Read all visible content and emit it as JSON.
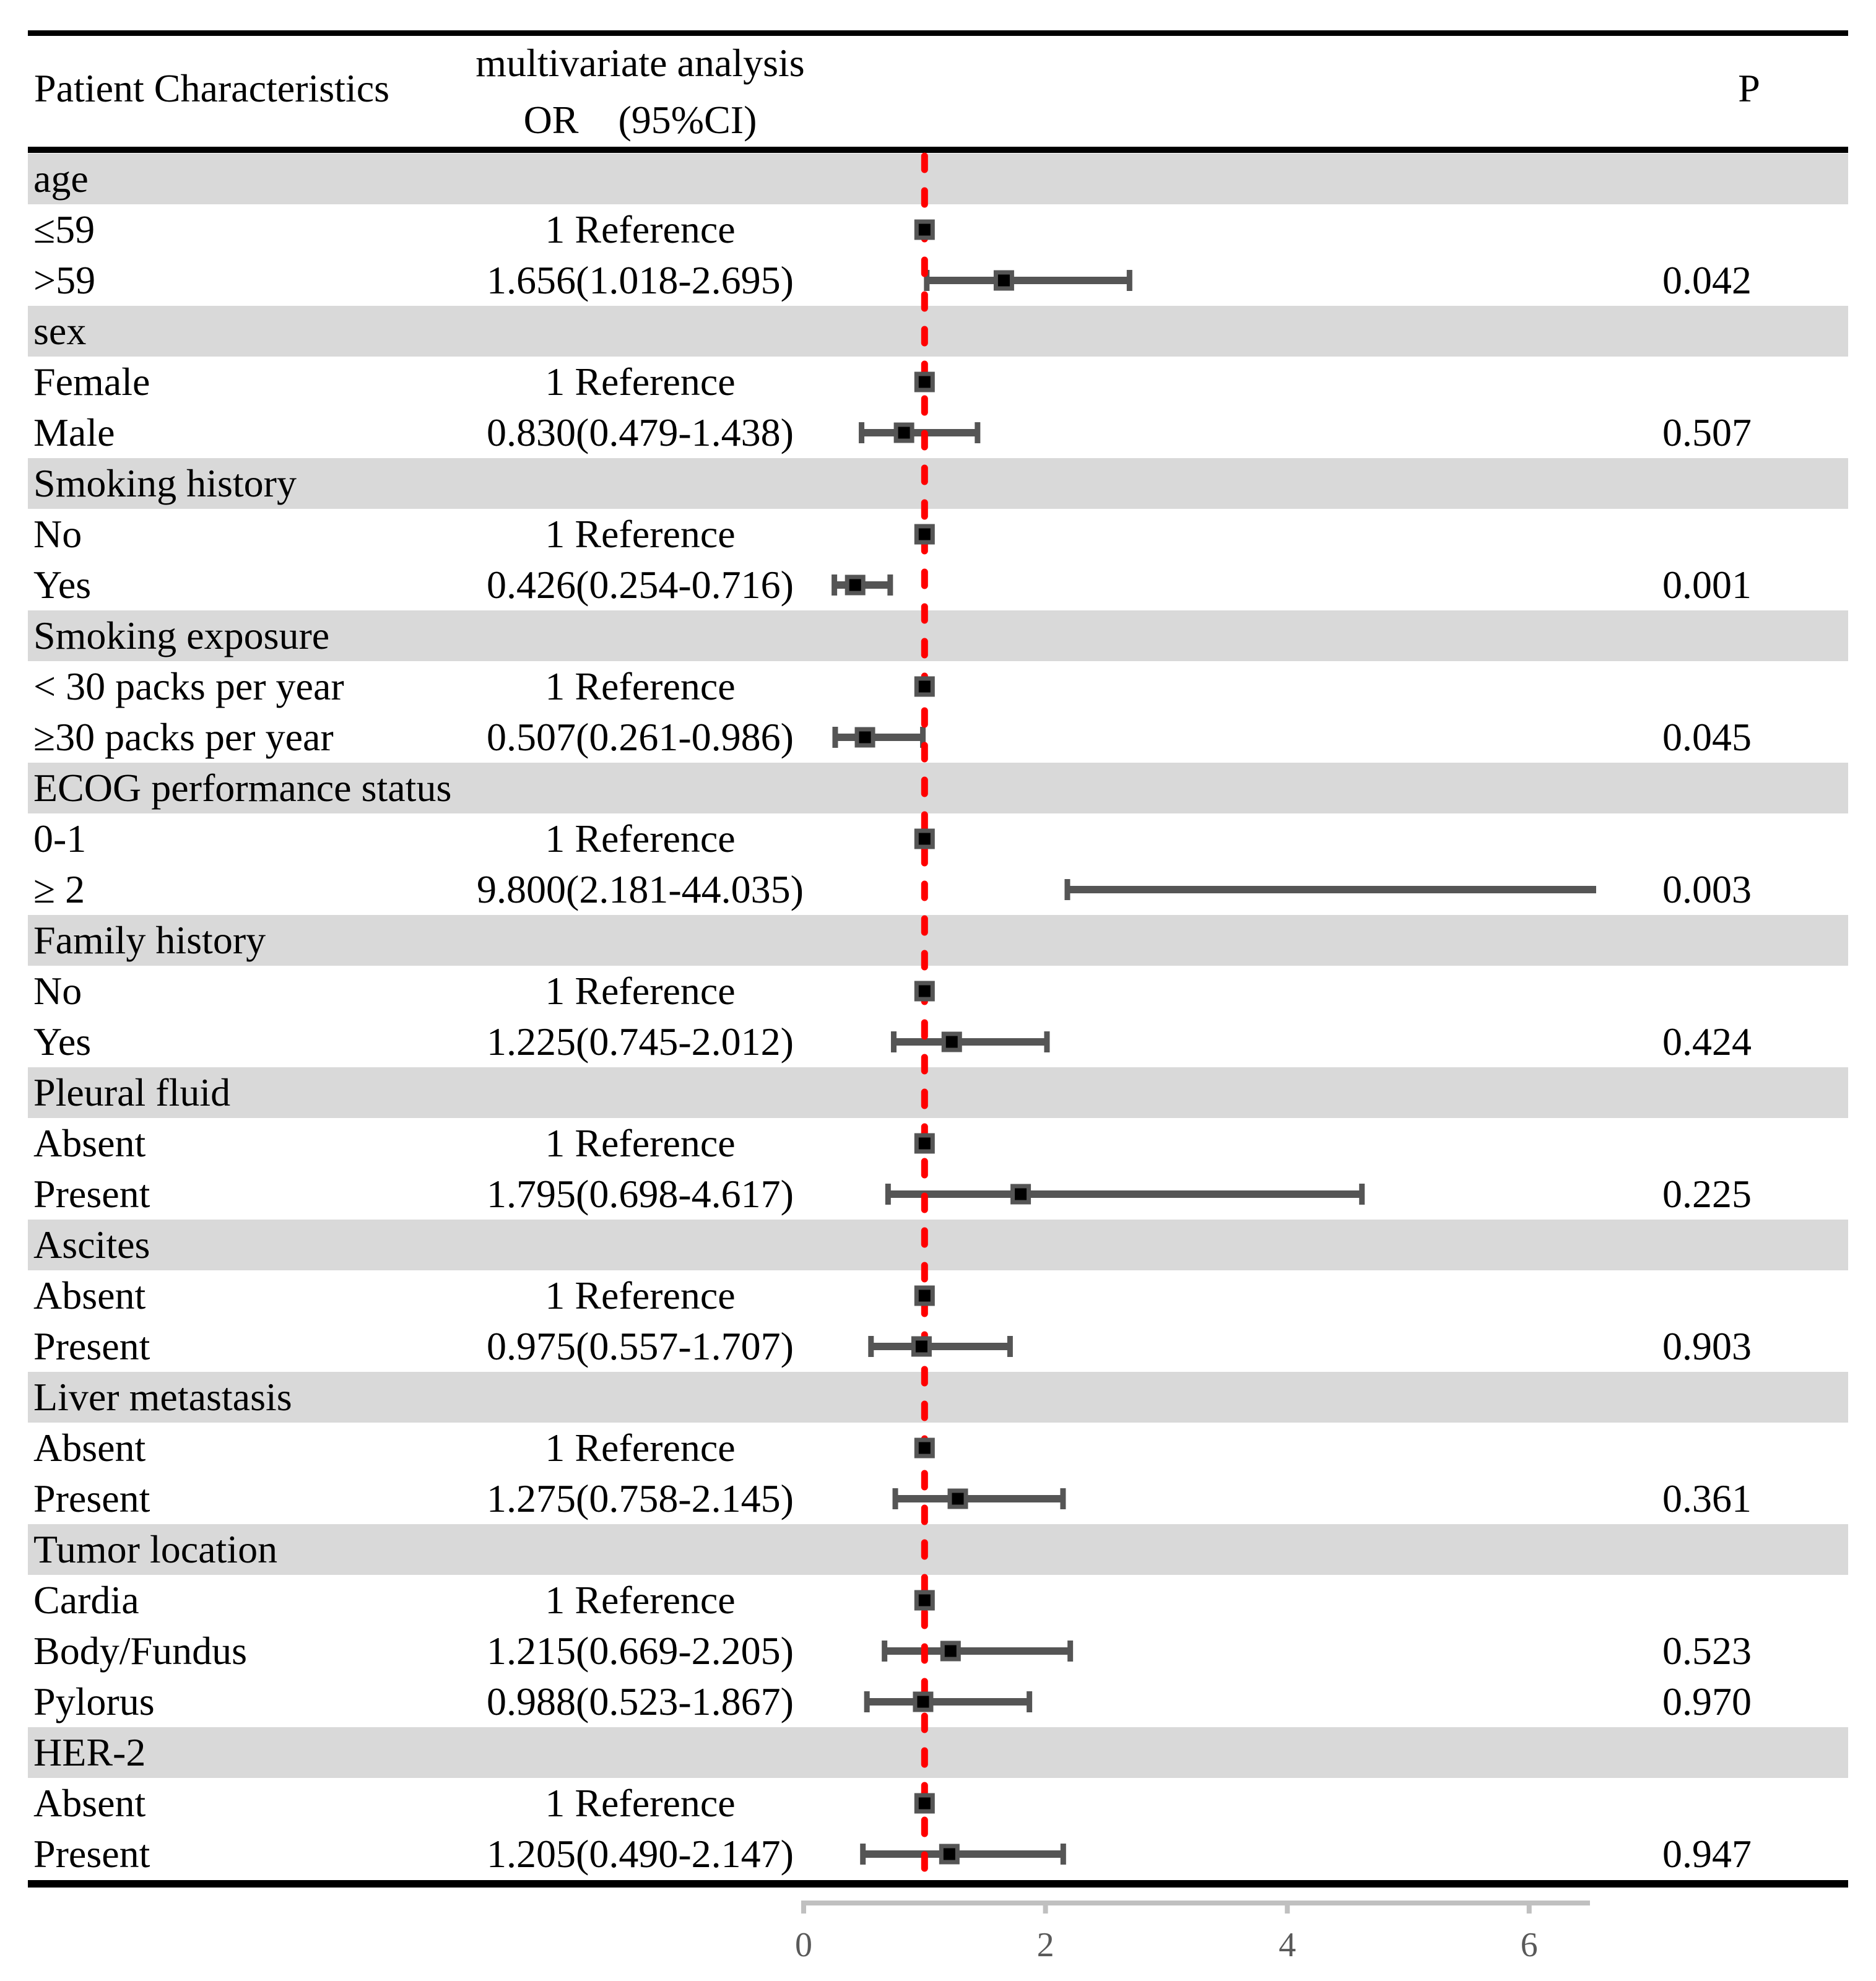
{
  "header": {
    "col_characteristics": "Patient Characteristics",
    "col_analysis_line1": "multivariate analysis",
    "col_analysis_line2": "OR (95%CI)",
    "col_p": "P"
  },
  "axis": {
    "tick_labels": [
      "0",
      "2",
      "4",
      "6"
    ],
    "tick_values": [
      0,
      2,
      4,
      6
    ],
    "reference_value": 1
  },
  "colors": {
    "band": "#d9d9d9",
    "red_line": "#ff0000",
    "marker_fill": "#000000",
    "marker_border": "#555555",
    "bar": "#555555",
    "axis_line": "#c0c0c0",
    "axis_label": "#595959",
    "text": "#000000"
  },
  "rows": [
    {
      "kind": "group",
      "label": "age"
    },
    {
      "kind": "item",
      "label": "≤59",
      "or_text": "1 Reference",
      "reference": true,
      "est": 1
    },
    {
      "kind": "item",
      "label": ">59",
      "or_text": "1.656(1.018-2.695)",
      "est": 1.656,
      "lo": 1.018,
      "hi": 2.695,
      "p": "0.042"
    },
    {
      "kind": "group",
      "label": "sex"
    },
    {
      "kind": "item",
      "label": "Female",
      "or_text": "1 Reference",
      "reference": true,
      "est": 1
    },
    {
      "kind": "item",
      "label": "Male",
      "or_text": "0.830(0.479-1.438)",
      "est": 0.83,
      "lo": 0.479,
      "hi": 1.438,
      "p": "0.507"
    },
    {
      "kind": "group",
      "label": "Smoking history"
    },
    {
      "kind": "item",
      "label": "No",
      "or_text": "1 Reference",
      "reference": true,
      "est": 1
    },
    {
      "kind": "item",
      "label": "Yes",
      "or_text": "0.426(0.254-0.716)",
      "est": 0.426,
      "lo": 0.254,
      "hi": 0.716,
      "p": "0.001"
    },
    {
      "kind": "group",
      "label": "Smoking exposure"
    },
    {
      "kind": "item",
      "label": "< 30 packs per year",
      "or_text": "1 Reference",
      "reference": true,
      "est": 1
    },
    {
      "kind": "item",
      "label": "≥30 packs per year",
      "or_text": "0.507(0.261-0.986)",
      "est": 0.507,
      "lo": 0.261,
      "hi": 0.986,
      "p": "0.045"
    },
    {
      "kind": "group",
      "label": "ECOG performance status"
    },
    {
      "kind": "item",
      "label": "0-1",
      "or_text": "1 Reference",
      "reference": true,
      "est": 1
    },
    {
      "kind": "item",
      "label": "≥ 2",
      "or_text": "9.800(2.181-44.035)",
      "est": 9.8,
      "lo": 2.181,
      "hi": 44.035,
      "p": "0.003"
    },
    {
      "kind": "group",
      "label": "Family history"
    },
    {
      "kind": "item",
      "label": "No",
      "or_text": "1 Reference",
      "reference": true,
      "est": 1
    },
    {
      "kind": "item",
      "label": "Yes",
      "or_text": "1.225(0.745-2.012)",
      "est": 1.225,
      "lo": 0.745,
      "hi": 2.012,
      "p": "0.424"
    },
    {
      "kind": "group",
      "label": "Pleural fluid"
    },
    {
      "kind": "item",
      "label": "Absent",
      "or_text": "1 Reference",
      "reference": true,
      "est": 1
    },
    {
      "kind": "item",
      "label": "Present",
      "or_text": "1.795(0.698-4.617)",
      "est": 1.795,
      "lo": 0.698,
      "hi": 4.617,
      "p": "0.225"
    },
    {
      "kind": "group",
      "label": "Ascites"
    },
    {
      "kind": "item",
      "label": "Absent",
      "or_text": "1 Reference",
      "reference": true,
      "est": 1
    },
    {
      "kind": "item",
      "label": "Present",
      "or_text": "0.975(0.557-1.707)",
      "est": 0.975,
      "lo": 0.557,
      "hi": 1.707,
      "p": "0.903"
    },
    {
      "kind": "group",
      "label": "Liver metastasis"
    },
    {
      "kind": "item",
      "label": "Absent",
      "or_text": "1 Reference",
      "reference": true,
      "est": 1
    },
    {
      "kind": "item",
      "label": "Present",
      "or_text": "1.275(0.758-2.145)",
      "est": 1.275,
      "lo": 0.758,
      "hi": 2.145,
      "p": "0.361"
    },
    {
      "kind": "group",
      "label": "Tumor location"
    },
    {
      "kind": "item",
      "label": "Cardia",
      "or_text": "1 Reference",
      "reference": true,
      "est": 1
    },
    {
      "kind": "item",
      "label": "Body/Fundus",
      "or_text": "1.215(0.669-2.205)",
      "est": 1.215,
      "lo": 0.669,
      "hi": 2.205,
      "p": "0.523"
    },
    {
      "kind": "item",
      "label": "Pylorus",
      "or_text": "0.988(0.523-1.867)",
      "est": 0.988,
      "lo": 0.523,
      "hi": 1.867,
      "p": "0.970"
    },
    {
      "kind": "group",
      "label": "HER-2"
    },
    {
      "kind": "item",
      "label": "Absent",
      "or_text": "1 Reference",
      "reference": true,
      "est": 1
    },
    {
      "kind": "item",
      "label": "Present",
      "or_text": "1.205(0.490-2.147)",
      "est": 1.205,
      "lo": 0.49,
      "hi": 2.147,
      "p": "0.947"
    }
  ],
  "chart_data": {
    "type": "forest",
    "title": "",
    "xlabel": "",
    "x_axis": {
      "ticks": [
        0,
        2,
        4,
        6
      ],
      "range_shown": [
        0,
        6.5
      ],
      "reference_line": 1
    },
    "columns": [
      "Patient Characteristics",
      "multivariate analysis OR (95%CI)",
      "P"
    ],
    "groups": [
      {
        "name": "age",
        "entries": [
          {
            "label": "≤59",
            "or": 1,
            "reference": true
          },
          {
            "label": ">59",
            "or": 1.656,
            "ci": [
              1.018,
              2.695
            ],
            "p": 0.042
          }
        ]
      },
      {
        "name": "sex",
        "entries": [
          {
            "label": "Female",
            "or": 1,
            "reference": true
          },
          {
            "label": "Male",
            "or": 0.83,
            "ci": [
              0.479,
              1.438
            ],
            "p": 0.507
          }
        ]
      },
      {
        "name": "Smoking history",
        "entries": [
          {
            "label": "No",
            "or": 1,
            "reference": true
          },
          {
            "label": "Yes",
            "or": 0.426,
            "ci": [
              0.254,
              0.716
            ],
            "p": 0.001
          }
        ]
      },
      {
        "name": "Smoking exposure",
        "entries": [
          {
            "label": "< 30 packs per year",
            "or": 1,
            "reference": true
          },
          {
            "label": "≥30 packs per year",
            "or": 0.507,
            "ci": [
              0.261,
              0.986
            ],
            "p": 0.045
          }
        ]
      },
      {
        "name": "ECOG performance status",
        "entries": [
          {
            "label": "0-1",
            "or": 1,
            "reference": true
          },
          {
            "label": "≥ 2",
            "or": 9.8,
            "ci": [
              2.181,
              44.035
            ],
            "p": 0.003
          }
        ]
      },
      {
        "name": "Family history",
        "entries": [
          {
            "label": "No",
            "or": 1,
            "reference": true
          },
          {
            "label": "Yes",
            "or": 1.225,
            "ci": [
              0.745,
              2.012
            ],
            "p": 0.424
          }
        ]
      },
      {
        "name": "Pleural fluid",
        "entries": [
          {
            "label": "Absent",
            "or": 1,
            "reference": true
          },
          {
            "label": "Present",
            "or": 1.795,
            "ci": [
              0.698,
              4.617
            ],
            "p": 0.225
          }
        ]
      },
      {
        "name": "Ascites",
        "entries": [
          {
            "label": "Absent",
            "or": 1,
            "reference": true
          },
          {
            "label": "Present",
            "or": 0.975,
            "ci": [
              0.557,
              1.707
            ],
            "p": 0.903
          }
        ]
      },
      {
        "name": "Liver metastasis",
        "entries": [
          {
            "label": "Absent",
            "or": 1,
            "reference": true
          },
          {
            "label": "Present",
            "or": 1.275,
            "ci": [
              0.758,
              2.145
            ],
            "p": 0.361
          }
        ]
      },
      {
        "name": "Tumor location",
        "entries": [
          {
            "label": "Cardia",
            "or": 1,
            "reference": true
          },
          {
            "label": "Body/Fundus",
            "or": 1.215,
            "ci": [
              0.669,
              2.205
            ],
            "p": 0.523
          },
          {
            "label": "Pylorus",
            "or": 0.988,
            "ci": [
              0.523,
              1.867
            ],
            "p": 0.97
          }
        ]
      },
      {
        "name": "HER-2",
        "entries": [
          {
            "label": "Absent",
            "or": 1,
            "reference": true
          },
          {
            "label": "Present",
            "or": 1.205,
            "ci": [
              0.49,
              2.147
            ],
            "p": 0.947
          }
        ]
      }
    ]
  }
}
